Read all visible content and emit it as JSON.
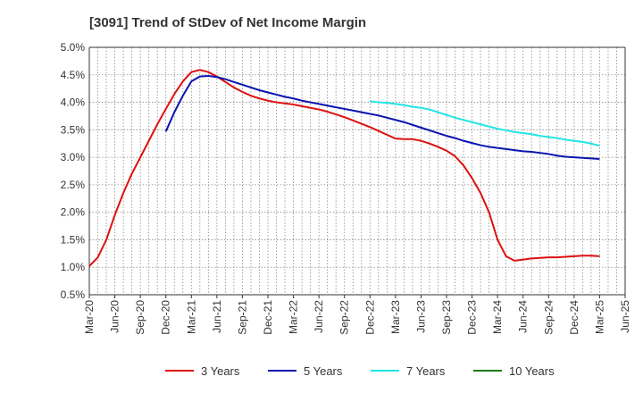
{
  "chart_data": {
    "type": "line",
    "title": "[3091]  Trend of StDev of Net Income Margin",
    "xlabel": "",
    "ylabel": "",
    "x_ticks": [
      "Mar-20",
      "Jun-20",
      "Sep-20",
      "Dec-20",
      "Mar-21",
      "Jun-21",
      "Sep-21",
      "Dec-21",
      "Mar-22",
      "Jun-22",
      "Sep-22",
      "Dec-22",
      "Mar-23",
      "Jun-23",
      "Sep-23",
      "Dec-23",
      "Mar-24",
      "Jun-24",
      "Sep-24",
      "Dec-24",
      "Mar-25",
      "Jun-25"
    ],
    "y_ticks": [
      "5.0%",
      "4.5%",
      "4.0%",
      "3.5%",
      "3.0%",
      "2.5%",
      "2.0%",
      "1.5%",
      "1.0%",
      "0.5%"
    ],
    "ylim": [
      0.5,
      5.0
    ],
    "grid": true,
    "legend_position": "bottom",
    "series": [
      {
        "name": "3 Years",
        "color": "#dd1111",
        "points": [
          [
            "Mar-20",
            1.02
          ],
          [
            "Apr-20",
            1.18
          ],
          [
            "May-20",
            1.5
          ],
          [
            "Jun-20",
            1.95
          ],
          [
            "Jul-20",
            2.35
          ],
          [
            "Aug-20",
            2.7
          ],
          [
            "Sep-20",
            3.0
          ],
          [
            "Oct-20",
            3.3
          ],
          [
            "Nov-20",
            3.6
          ],
          [
            "Dec-20",
            3.88
          ],
          [
            "Jan-21",
            4.15
          ],
          [
            "Feb-21",
            4.38
          ],
          [
            "Mar-21",
            4.55
          ],
          [
            "Apr-21",
            4.59
          ],
          [
            "May-21",
            4.55
          ],
          [
            "Jun-21",
            4.47
          ],
          [
            "Jul-21",
            4.37
          ],
          [
            "Aug-21",
            4.27
          ],
          [
            "Sep-21",
            4.19
          ],
          [
            "Oct-21",
            4.12
          ],
          [
            "Nov-21",
            4.07
          ],
          [
            "Dec-21",
            4.03
          ],
          [
            "Jan-22",
            4.0
          ],
          [
            "Feb-22",
            3.98
          ],
          [
            "Mar-22",
            3.96
          ],
          [
            "Apr-22",
            3.93
          ],
          [
            "May-22",
            3.9
          ],
          [
            "Jun-22",
            3.87
          ],
          [
            "Jul-22",
            3.83
          ],
          [
            "Aug-22",
            3.78
          ],
          [
            "Sep-22",
            3.73
          ],
          [
            "Oct-22",
            3.67
          ],
          [
            "Nov-22",
            3.61
          ],
          [
            "Dec-22",
            3.55
          ],
          [
            "Jan-23",
            3.48
          ],
          [
            "Feb-23",
            3.41
          ],
          [
            "Mar-23",
            3.34
          ],
          [
            "Apr-23",
            3.33
          ],
          [
            "May-23",
            3.33
          ],
          [
            "Jun-23",
            3.3
          ],
          [
            "Jul-23",
            3.25
          ],
          [
            "Aug-23",
            3.19
          ],
          [
            "Sep-23",
            3.12
          ],
          [
            "Oct-23",
            3.02
          ],
          [
            "Nov-23",
            2.85
          ],
          [
            "Dec-23",
            2.62
          ],
          [
            "Jan-24",
            2.35
          ],
          [
            "Feb-24",
            2.0
          ],
          [
            "Mar-24",
            1.5
          ],
          [
            "Apr-24",
            1.2
          ],
          [
            "May-24",
            1.12
          ],
          [
            "Jun-24",
            1.14
          ],
          [
            "Jul-24",
            1.16
          ],
          [
            "Aug-24",
            1.17
          ],
          [
            "Sep-24",
            1.18
          ],
          [
            "Oct-24",
            1.18
          ],
          [
            "Nov-24",
            1.19
          ],
          [
            "Dec-24",
            1.2
          ],
          [
            "Jan-25",
            1.21
          ],
          [
            "Feb-25",
            1.21
          ],
          [
            "Mar-25",
            1.2
          ]
        ]
      },
      {
        "name": "5 Years",
        "color": "#0a14b0",
        "points": [
          [
            "Dec-20",
            3.47
          ],
          [
            "Jan-21",
            3.82
          ],
          [
            "Feb-21",
            4.12
          ],
          [
            "Mar-21",
            4.38
          ],
          [
            "Apr-21",
            4.47
          ],
          [
            "May-21",
            4.48
          ],
          [
            "Jun-21",
            4.46
          ],
          [
            "Jul-21",
            4.42
          ],
          [
            "Aug-21",
            4.37
          ],
          [
            "Sep-21",
            4.32
          ],
          [
            "Oct-21",
            4.27
          ],
          [
            "Nov-21",
            4.22
          ],
          [
            "Dec-21",
            4.18
          ],
          [
            "Jan-22",
            4.14
          ],
          [
            "Feb-22",
            4.1
          ],
          [
            "Mar-22",
            4.07
          ],
          [
            "Apr-22",
            4.03
          ],
          [
            "May-22",
            4.0
          ],
          [
            "Jun-22",
            3.97
          ],
          [
            "Jul-22",
            3.94
          ],
          [
            "Aug-22",
            3.91
          ],
          [
            "Sep-22",
            3.88
          ],
          [
            "Oct-22",
            3.85
          ],
          [
            "Nov-22",
            3.82
          ],
          [
            "Dec-22",
            3.79
          ],
          [
            "Jan-23",
            3.76
          ],
          [
            "Feb-23",
            3.72
          ],
          [
            "Mar-23",
            3.68
          ],
          [
            "Apr-23",
            3.64
          ],
          [
            "May-23",
            3.59
          ],
          [
            "Jun-23",
            3.54
          ],
          [
            "Jul-23",
            3.49
          ],
          [
            "Aug-23",
            3.44
          ],
          [
            "Sep-23",
            3.39
          ],
          [
            "Oct-23",
            3.35
          ],
          [
            "Nov-23",
            3.3
          ],
          [
            "Dec-23",
            3.26
          ],
          [
            "Jan-24",
            3.22
          ],
          [
            "Feb-24",
            3.19
          ],
          [
            "Mar-24",
            3.17
          ],
          [
            "Apr-24",
            3.15
          ],
          [
            "May-24",
            3.13
          ],
          [
            "Jun-24",
            3.11
          ],
          [
            "Jul-24",
            3.1
          ],
          [
            "Aug-24",
            3.08
          ],
          [
            "Sep-24",
            3.06
          ],
          [
            "Oct-24",
            3.03
          ],
          [
            "Nov-24",
            3.01
          ],
          [
            "Dec-24",
            3.0
          ],
          [
            "Jan-25",
            2.99
          ],
          [
            "Feb-25",
            2.98
          ],
          [
            "Mar-25",
            2.97
          ]
        ]
      },
      {
        "name": "7 Years",
        "color": "#22e5e5",
        "points": [
          [
            "Dec-22",
            4.02
          ],
          [
            "Jan-23",
            4.0
          ],
          [
            "Feb-23",
            3.99
          ],
          [
            "Mar-23",
            3.97
          ],
          [
            "Apr-23",
            3.95
          ],
          [
            "May-23",
            3.92
          ],
          [
            "Jun-23",
            3.9
          ],
          [
            "Jul-23",
            3.87
          ],
          [
            "Aug-23",
            3.82
          ],
          [
            "Sep-23",
            3.77
          ],
          [
            "Oct-23",
            3.72
          ],
          [
            "Nov-23",
            3.68
          ],
          [
            "Dec-23",
            3.64
          ],
          [
            "Jan-24",
            3.6
          ],
          [
            "Feb-24",
            3.56
          ],
          [
            "Mar-24",
            3.52
          ],
          [
            "Apr-24",
            3.49
          ],
          [
            "May-24",
            3.46
          ],
          [
            "Jun-24",
            3.44
          ],
          [
            "Jul-24",
            3.42
          ],
          [
            "Aug-24",
            3.39
          ],
          [
            "Sep-24",
            3.37
          ],
          [
            "Oct-24",
            3.35
          ],
          [
            "Nov-24",
            3.32
          ],
          [
            "Dec-24",
            3.3
          ],
          [
            "Jan-25",
            3.28
          ],
          [
            "Feb-25",
            3.25
          ],
          [
            "Mar-25",
            3.21
          ]
        ]
      },
      {
        "name": "10 Years",
        "color": "#1a7a1a",
        "points": []
      }
    ]
  }
}
